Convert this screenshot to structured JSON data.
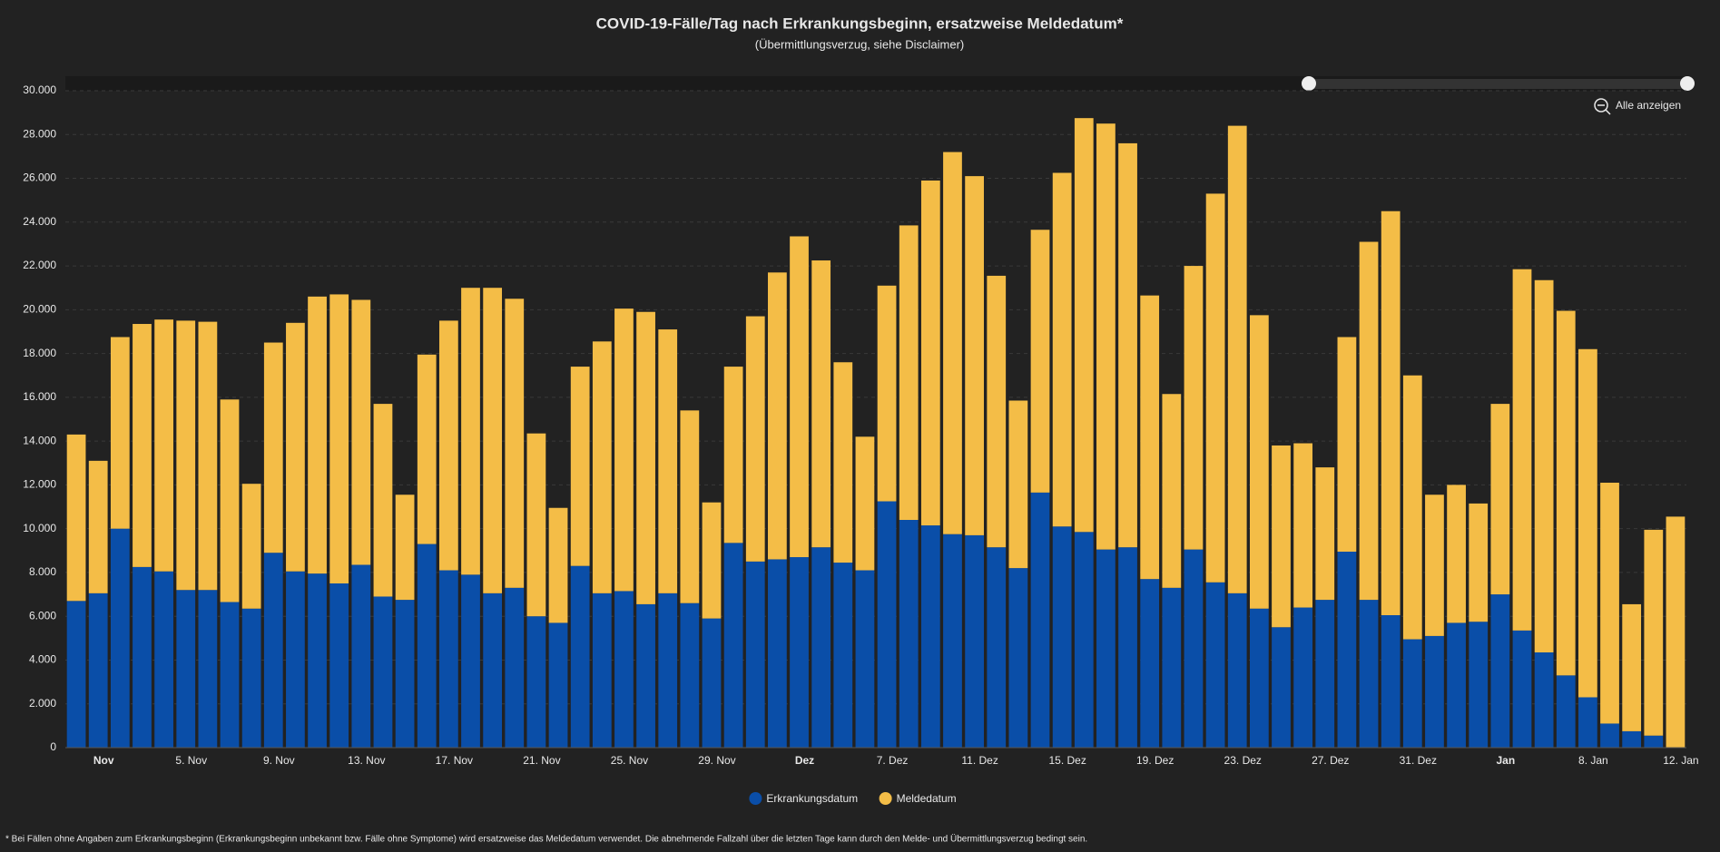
{
  "chart_data": {
    "type": "stacked-bar",
    "title": "COVID-19-Fälle/Tag nach Erkrankungsbeginn, ersatzweise Meldedatum*",
    "subtitle": "(Übermittlungsverzug, siehe Disclaimer)",
    "zoom_button": "Alle anzeigen",
    "footnote": "* Bei Fällen ohne Angaben zum Erkrankungsbeginn (Erkrankungsbeginn unbekannt bzw. Fälle ohne Symptome) wird ersatzweise das Meldedatum verwendet. Die abnehmende Fallzahl über die letzten Tage kann durch den Melde- und Übermittlungsverzug bedingt sein.",
    "categories": [
      null,
      "Nov",
      null,
      null,
      null,
      "5. Nov",
      null,
      null,
      null,
      "9. Nov",
      null,
      null,
      null,
      "13. Nov",
      null,
      null,
      null,
      "17. Nov",
      null,
      null,
      null,
      "21. Nov",
      null,
      null,
      null,
      "25. Nov",
      null,
      null,
      null,
      "29. Nov",
      null,
      null,
      null,
      "Dez",
      null,
      null,
      null,
      "7. Dez",
      null,
      null,
      null,
      "11. Dez",
      null,
      null,
      null,
      "15. Dez",
      null,
      null,
      null,
      "19. Dez",
      null,
      null,
      null,
      "23. Dez",
      null,
      null,
      null,
      "27. Dez",
      null,
      null,
      null,
      "31. Dez",
      null,
      null,
      null,
      "Jan",
      null,
      null,
      null,
      "8. Jan",
      null,
      null,
      null,
      "12. Jan"
    ],
    "series": [
      {
        "name": "Erkrankungsdatum",
        "color": "#0a4ea8",
        "values": [
          6700,
          7050,
          10000,
          8250,
          8050,
          7200,
          7200,
          6650,
          6350,
          8900,
          8050,
          7950,
          7500,
          8350,
          6900,
          6750,
          9300,
          8100,
          7900,
          7050,
          7300,
          6000,
          5700,
          8300,
          7050,
          7150,
          6550,
          7050,
          6600,
          5900,
          9350,
          8500,
          8600,
          8700,
          9150,
          8450,
          8100,
          11250,
          10400,
          10150,
          9750,
          9700,
          9150,
          8200,
          11650,
          10100,
          9850,
          9050,
          9150,
          7700,
          7300,
          9050,
          7550,
          7050,
          6350,
          5500,
          6400,
          6750,
          8950,
          6750,
          6050,
          4950,
          5100,
          5700,
          5750,
          7000,
          5350,
          4350,
          3300,
          2300,
          1100,
          750,
          550,
          0
        ]
      },
      {
        "name": "Meldedatum",
        "color": "#f4bd47",
        "values": [
          7600,
          6050,
          8750,
          11100,
          11500,
          12300,
          12250,
          9250,
          5700,
          9600,
          11350,
          12650,
          13200,
          12100,
          8800,
          4800,
          8650,
          11400,
          13100,
          13950,
          13200,
          8350,
          5250,
          9100,
          11500,
          12900,
          13350,
          12050,
          8800,
          5300,
          8050,
          11200,
          13100,
          14650,
          13100,
          9150,
          6100,
          9850,
          13450,
          15750,
          17450,
          16400,
          12400,
          7650,
          12000,
          16150,
          18900,
          19450,
          18450,
          12950,
          8850,
          12950,
          17750,
          21350,
          13400,
          8300,
          7500,
          6050,
          9800,
          16350,
          18450,
          12050,
          6450,
          6300,
          5400,
          8700,
          16500,
          17000,
          16650,
          15900,
          11000,
          5800,
          9400,
          10550
        ]
      }
    ],
    "ylim": [
      0,
      30000
    ],
    "yticks": [
      0,
      {
        "value": 2000,
        "label": "2.000"
      },
      {
        "value": 4000,
        "label": "4.000"
      },
      {
        "value": 6000,
        "label": "6.000"
      },
      {
        "value": 8000,
        "label": "8.000"
      },
      {
        "value": 10000,
        "label": "10.000"
      },
      {
        "value": 12000,
        "label": "12.000"
      },
      {
        "value": 14000,
        "label": "14.000"
      },
      {
        "value": 16000,
        "label": "16.000"
      },
      {
        "value": 18000,
        "label": "18.000"
      },
      {
        "value": 20000,
        "label": "20.000"
      },
      {
        "value": 22000,
        "label": "22.000"
      },
      {
        "value": 24000,
        "label": "24.000"
      },
      {
        "value": 26000,
        "label": "26.000"
      },
      {
        "value": 28000,
        "label": "28.000"
      },
      {
        "value": 30000,
        "label": "30.000"
      }
    ],
    "grid": true
  }
}
